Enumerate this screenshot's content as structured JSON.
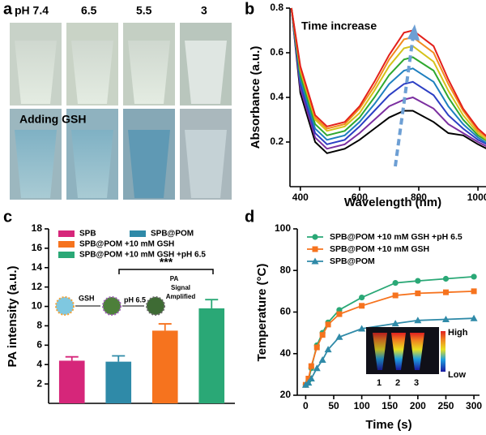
{
  "panel_labels": [
    "a",
    "b",
    "c",
    "d"
  ],
  "photo_panel": {
    "ph_labels": [
      "pH 7.4",
      "6.5",
      "5.5",
      "3"
    ],
    "row_label": "Adding GSH"
  },
  "chart_data": [
    {
      "type": "line",
      "annotations": [
        "Time increase"
      ],
      "xlabel": "Wavelength (nm)",
      "ylabel": "Absorbance (a.u.)",
      "x": [
        370,
        400,
        450,
        490,
        550,
        600,
        650,
        700,
        750,
        780,
        850,
        900,
        950,
        1000,
        1060
      ],
      "xlim": [
        365,
        1060
      ],
      "xticks": [
        400,
        600,
        800,
        1000
      ],
      "ylim": [
        0,
        0.8
      ],
      "yticks": [
        0.2,
        0.4,
        0.6,
        0.8
      ],
      "series": [
        {
          "color": "#000000",
          "values": [
            0.8,
            0.42,
            0.2,
            0.15,
            0.17,
            0.21,
            0.26,
            0.31,
            0.34,
            0.34,
            0.29,
            0.24,
            0.23,
            0.19,
            0.15
          ]
        },
        {
          "color": "#7b2fa0",
          "values": [
            0.8,
            0.44,
            0.22,
            0.17,
            0.19,
            0.24,
            0.3,
            0.36,
            0.39,
            0.4,
            0.35,
            0.28,
            0.24,
            0.2,
            0.16
          ]
        },
        {
          "color": "#2c3fc4",
          "values": [
            0.8,
            0.46,
            0.24,
            0.19,
            0.21,
            0.27,
            0.34,
            0.41,
            0.46,
            0.47,
            0.41,
            0.32,
            0.26,
            0.21,
            0.17
          ]
        },
        {
          "color": "#1e7fbf",
          "values": [
            0.8,
            0.48,
            0.26,
            0.21,
            0.23,
            0.29,
            0.37,
            0.46,
            0.52,
            0.53,
            0.47,
            0.36,
            0.28,
            0.22,
            0.17
          ]
        },
        {
          "color": "#2fa82f",
          "values": [
            0.8,
            0.5,
            0.28,
            0.23,
            0.25,
            0.31,
            0.4,
            0.5,
            0.57,
            0.58,
            0.52,
            0.4,
            0.3,
            0.23,
            0.18
          ]
        },
        {
          "color": "#d4c21a",
          "values": [
            0.8,
            0.52,
            0.3,
            0.25,
            0.27,
            0.33,
            0.43,
            0.54,
            0.62,
            0.63,
            0.56,
            0.43,
            0.32,
            0.24,
            0.18
          ]
        },
        {
          "color": "#f28c1e",
          "values": [
            0.8,
            0.53,
            0.31,
            0.26,
            0.28,
            0.35,
            0.45,
            0.57,
            0.66,
            0.67,
            0.6,
            0.46,
            0.34,
            0.25,
            0.19
          ]
        },
        {
          "color": "#e3201b",
          "values": [
            0.8,
            0.54,
            0.32,
            0.27,
            0.29,
            0.36,
            0.47,
            0.59,
            0.69,
            0.7,
            0.63,
            0.48,
            0.35,
            0.26,
            0.19
          ]
        }
      ]
    },
    {
      "type": "bar",
      "ylabel": "PA intensity (a.u.)",
      "annotations": [
        "***",
        "GSH",
        "pH 6.5",
        "PA",
        "Signal",
        "Amplified"
      ],
      "ylim": [
        0,
        18
      ],
      "yticks": [
        2,
        4,
        6,
        8,
        10,
        12,
        14,
        16,
        18
      ],
      "series": [
        {
          "name": "SPB",
          "color": "#d6267a",
          "values": [
            4.4
          ],
          "errors": [
            0.4
          ]
        },
        {
          "name": "SPB@POM",
          "color": "#2f8aa8",
          "values": [
            4.3
          ],
          "errors": [
            0.6
          ]
        },
        {
          "name": "SPB@POM +10 mM GSH",
          "color": "#f6731e",
          "values": [
            7.5
          ],
          "errors": [
            0.7
          ]
        },
        {
          "name": "SPB@POM +10 mM GSH +pH 6.5",
          "color": "#2aa876",
          "values": [
            9.8
          ],
          "errors": [
            0.9
          ]
        }
      ]
    },
    {
      "type": "line",
      "xlabel": "Time (s)",
      "ylabel": "Temperature (°C)",
      "annotations": [
        "High",
        "Low",
        "1",
        "2",
        "3"
      ],
      "legend": "upper left",
      "x": [
        0,
        5,
        10,
        20,
        30,
        40,
        60,
        100,
        160,
        200,
        250,
        300
      ],
      "xlim": [
        -15,
        310
      ],
      "xticks": [
        0,
        50,
        100,
        150,
        200,
        250,
        300
      ],
      "ylim": [
        20,
        100
      ],
      "yticks": [
        20,
        40,
        60,
        80,
        100
      ],
      "series": [
        {
          "name": "SPB@POM +10 mM GSH +pH 6.5",
          "color": "#2aa876",
          "marker": "circle",
          "values": [
            25,
            27,
            33,
            44,
            50,
            55,
            61,
            67,
            74,
            75,
            76,
            77
          ]
        },
        {
          "name": "SPB@POM +10 mM GSH",
          "color": "#f6731e",
          "marker": "square",
          "values": [
            25,
            28,
            34,
            43,
            49,
            54,
            59,
            63,
            68,
            69,
            69.5,
            70
          ]
        },
        {
          "name": "SPB@POM",
          "color": "#2f8aa8",
          "marker": "triangle",
          "values": [
            25,
            26,
            28,
            33,
            37,
            42,
            48,
            52,
            54.5,
            56,
            56.5,
            57
          ]
        }
      ]
    }
  ]
}
